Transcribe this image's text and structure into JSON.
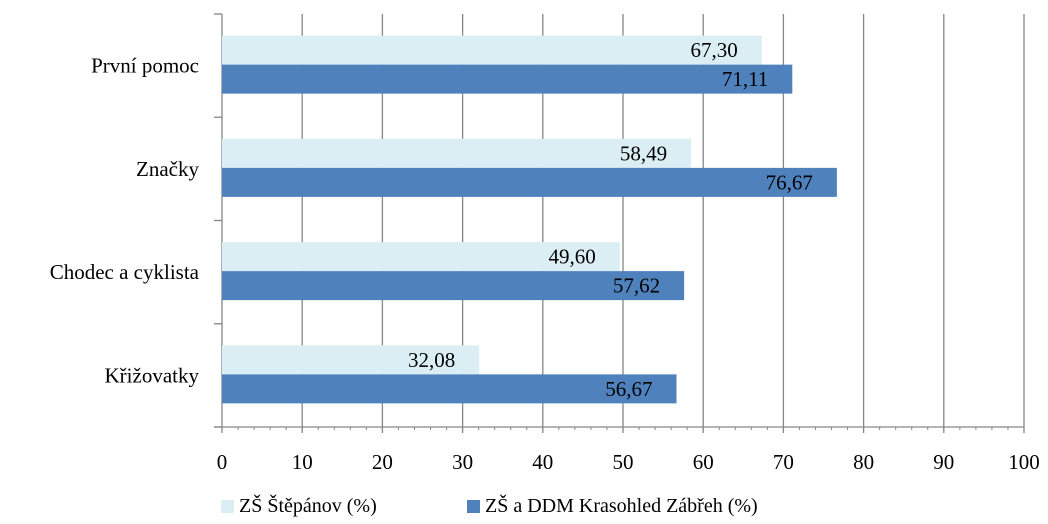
{
  "chart_data": {
    "type": "bar",
    "orientation": "horizontal",
    "categories": [
      "První pomoc",
      "Značky",
      "Chodec a cyklista",
      "Křižovatky"
    ],
    "series": [
      {
        "name": "ZŠ Štěpánov (%)",
        "color": "#dbeef3",
        "values": [
          67.3,
          58.49,
          49.6,
          32.08
        ],
        "labels": [
          "67,30",
          "58,49",
          "49,60",
          "32,08"
        ]
      },
      {
        "name": "ZŠ a DDM Krasohled Zábřeh (%)",
        "color": "#4f81bd",
        "values": [
          71.11,
          76.67,
          57.62,
          56.67
        ],
        "labels": [
          "71,11",
          "76,67",
          "57,62",
          "56,67"
        ]
      }
    ],
    "xlim": [
      0,
      100
    ],
    "xticks": [
      "0",
      "10",
      "20",
      "30",
      "40",
      "50",
      "60",
      "70",
      "80",
      "90",
      "100"
    ],
    "grid": "vertical major gridlines",
    "legend_position": "bottom"
  }
}
